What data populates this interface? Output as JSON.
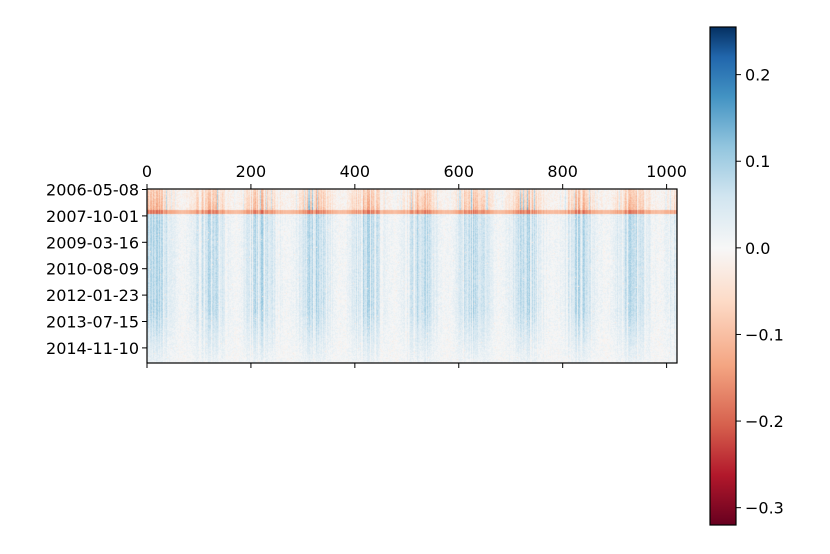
{
  "chart_data": {
    "type": "heatmap",
    "title": "",
    "xlabel": "",
    "ylabel": "",
    "x_ticks": [
      0,
      200,
      400,
      600,
      800,
      1000
    ],
    "x_tick_labels": [
      "0",
      "200",
      "400",
      "600",
      "800",
      "1000"
    ],
    "xlim": [
      0,
      1020
    ],
    "x_axis_position": "top",
    "y_tick_labels": [
      "2006-05-08",
      "2007-10-01",
      "2009-03-16",
      "2010-08-09",
      "2012-01-23",
      "2013-07-15",
      "2014-11-10"
    ],
    "rows": 175,
    "cols": 1020,
    "colormap": "RdBu",
    "colorbar": {
      "vmin": -0.32,
      "vmax": 0.255,
      "ticks": [
        0.2,
        0.1,
        0.0,
        -0.1,
        -0.2,
        -0.3
      ],
      "tick_labels": [
        "0.2",
        "0.1",
        "0.0",
        "−0.1",
        "−0.2",
        "−0.3"
      ],
      "placement": "right"
    },
    "value_bands": [
      {
        "row_range": [
          0,
          25
        ],
        "typical_value": -0.08,
        "description": "mostly negative (red)"
      },
      {
        "row_range": [
          25,
          175
        ],
        "typical_value": 0.07,
        "description": "mostly positive (blue)"
      }
    ],
    "grid": false
  }
}
